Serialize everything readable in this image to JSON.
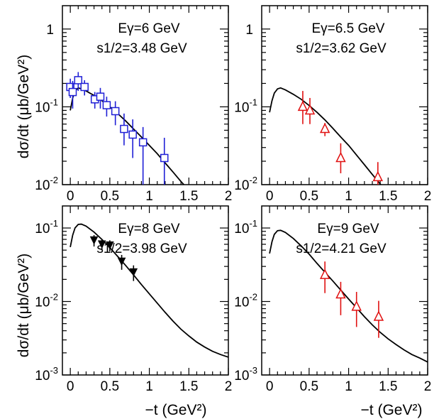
{
  "figure": {
    "ylabel": "dσ/dt (μb/GeV²)",
    "xlabel": "−t (GeV²)"
  },
  "chart_data": [
    {
      "type": "scatter",
      "panel": "top-left",
      "annotation_line1": "Eγ=6 GeV",
      "annotation_line2": "s1/2=3.48 GeV",
      "xlim": [
        -0.1,
        2.0
      ],
      "ylim_log10": [
        -2,
        0.3
      ],
      "xticks": [
        "0",
        "0.5",
        "1",
        "1.5",
        "2"
      ],
      "yticks": [
        {
          "base": "10",
          "exp": "-2",
          "v": -2
        },
        {
          "base": "10",
          "exp": "-1",
          "v": -1
        },
        {
          "base": "1",
          "exp": "",
          "v": 0
        }
      ],
      "series": [
        {
          "marker": "open-square",
          "color": "#1f1fd6",
          "x": [
            0.0,
            0.03,
            0.1,
            0.18,
            0.31,
            0.38,
            0.46,
            0.57,
            0.68,
            0.79,
            0.92,
            1.19
          ],
          "y": [
            0.18,
            0.155,
            0.22,
            0.18,
            0.125,
            0.135,
            0.105,
            0.088,
            0.052,
            0.044,
            0.035,
            0.022
          ],
          "y_err_low": [
            0.05,
            0.06,
            0.06,
            0.04,
            0.03,
            0.04,
            0.03,
            0.03,
            0.02,
            0.022,
            0.025,
            0.016
          ],
          "y_err_high": [
            0.05,
            0.06,
            0.06,
            0.04,
            0.03,
            0.04,
            0.03,
            0.03,
            0.03,
            0.025,
            0.02,
            0.018
          ]
        }
      ],
      "curve": {
        "x": [
          0.0,
          0.03,
          0.06,
          0.1,
          0.14,
          0.2,
          0.3,
          0.4,
          0.5,
          0.6,
          0.7,
          0.8,
          0.9,
          1.0,
          1.1,
          1.2,
          1.3,
          1.4,
          1.5
        ],
        "y": [
          0.09,
          0.13,
          0.16,
          0.175,
          0.17,
          0.16,
          0.14,
          0.12,
          0.1,
          0.082,
          0.066,
          0.052,
          0.041,
          0.032,
          0.025,
          0.019,
          0.0145,
          0.011,
          0.0085
        ]
      }
    },
    {
      "type": "scatter",
      "panel": "top-right",
      "annotation_line1": "Eγ=6.5 GeV",
      "annotation_line2": "s1/2=3.62 GeV",
      "xlim": [
        -0.1,
        2.0
      ],
      "ylim_log10": [
        -2,
        0.3
      ],
      "xticks": [
        "0",
        "0.5",
        "1",
        "1.5",
        "2"
      ],
      "yticks": [
        {
          "base": "10",
          "exp": "-2",
          "v": -2
        },
        {
          "base": "10",
          "exp": "-1",
          "v": -1
        },
        {
          "base": "1",
          "exp": "",
          "v": 0
        }
      ],
      "series": [
        {
          "marker": "open-triangle",
          "color": "#e01010",
          "x": [
            0.42,
            0.51,
            0.7,
            0.9,
            1.37
          ],
          "y": [
            0.1,
            0.09,
            0.052,
            0.022,
            0.0125
          ],
          "y_err_low": [
            0.04,
            0.03,
            0.01,
            0.008,
            0.005
          ],
          "y_err_high": [
            0.06,
            0.04,
            0.01,
            0.012,
            0.007
          ]
        }
      ],
      "curve": {
        "x": [
          0.0,
          0.03,
          0.06,
          0.1,
          0.14,
          0.2,
          0.3,
          0.4,
          0.5,
          0.6,
          0.7,
          0.8,
          0.9,
          1.0,
          1.1,
          1.2,
          1.3,
          1.4,
          1.5,
          1.55
        ],
        "y": [
          0.085,
          0.12,
          0.15,
          0.17,
          0.175,
          0.165,
          0.145,
          0.125,
          0.104,
          0.085,
          0.068,
          0.053,
          0.041,
          0.032,
          0.024,
          0.018,
          0.0135,
          0.0102,
          0.0077,
          0.0068
        ]
      }
    },
    {
      "type": "scatter",
      "panel": "bottom-left",
      "annotation_line1": "Eγ=8 GeV",
      "annotation_line2": "s1/2=3.98 GeV",
      "xlim": [
        -0.1,
        2.0
      ],
      "ylim_log10": [
        -3,
        -0.7
      ],
      "xticks": [
        "0",
        "0.5",
        "1",
        "1.5",
        "2"
      ],
      "yticks": [
        {
          "base": "10",
          "exp": "-3",
          "v": -3
        },
        {
          "base": "10",
          "exp": "-2",
          "v": -2
        },
        {
          "base": "10",
          "exp": "-1",
          "v": -1
        }
      ],
      "series": [
        {
          "marker": "filled-down-triangle",
          "color": "#000000",
          "x": [
            0.3,
            0.4,
            0.5,
            0.65,
            0.8
          ],
          "y": [
            0.068,
            0.06,
            0.058,
            0.035,
            0.025
          ],
          "y_err_low": [
            0.012,
            0.01,
            0.01,
            0.008,
            0.006
          ],
          "y_err_high": [
            0.012,
            0.01,
            0.01,
            0.008,
            0.006
          ]
        }
      ],
      "curve": {
        "x": [
          0.0,
          0.03,
          0.06,
          0.1,
          0.14,
          0.2,
          0.3,
          0.4,
          0.5,
          0.6,
          0.7,
          0.8,
          0.9,
          1.0,
          1.1,
          1.2,
          1.3,
          1.4,
          1.5,
          1.6,
          1.7,
          1.8,
          1.9,
          2.0
        ],
        "y": [
          0.055,
          0.08,
          0.1,
          0.112,
          0.113,
          0.106,
          0.088,
          0.07,
          0.054,
          0.041,
          0.031,
          0.023,
          0.017,
          0.0127,
          0.0095,
          0.0071,
          0.0054,
          0.0042,
          0.0034,
          0.0028,
          0.0024,
          0.0021,
          0.0019,
          0.00175
        ]
      }
    },
    {
      "type": "scatter",
      "panel": "bottom-right",
      "annotation_line1": "Eγ=9 GeV",
      "annotation_line2": "s1/2=4.21 GeV",
      "xlim": [
        -0.1,
        2.0
      ],
      "ylim_log10": [
        -3,
        -0.7
      ],
      "xticks": [
        "0",
        "0.5",
        "1",
        "1.5",
        "2"
      ],
      "yticks": [
        {
          "base": "10",
          "exp": "-3",
          "v": -3
        },
        {
          "base": "10",
          "exp": "-2",
          "v": -2
        },
        {
          "base": "10",
          "exp": "-1",
          "v": -1
        }
      ],
      "series": [
        {
          "marker": "open-triangle",
          "color": "#e01010",
          "x": [
            0.7,
            0.9,
            1.1,
            1.38
          ],
          "y": [
            0.023,
            0.0125,
            0.0085,
            0.0062
          ],
          "y_err_low": [
            0.01,
            0.006,
            0.004,
            0.003
          ],
          "y_err_high": [
            0.012,
            0.006,
            0.005,
            0.004
          ]
        }
      ],
      "curve": {
        "x": [
          0.0,
          0.03,
          0.06,
          0.1,
          0.14,
          0.2,
          0.3,
          0.4,
          0.5,
          0.6,
          0.7,
          0.8,
          0.9,
          1.0,
          1.1,
          1.2,
          1.3,
          1.4,
          1.5,
          1.6,
          1.7,
          1.8,
          1.9,
          2.0
        ],
        "y": [
          0.045,
          0.065,
          0.082,
          0.092,
          0.093,
          0.087,
          0.072,
          0.057,
          0.044,
          0.033,
          0.025,
          0.019,
          0.0143,
          0.0108,
          0.0082,
          0.0062,
          0.0048,
          0.0038,
          0.0031,
          0.0026,
          0.0022,
          0.0019,
          0.0017,
          0.0015
        ]
      }
    }
  ]
}
